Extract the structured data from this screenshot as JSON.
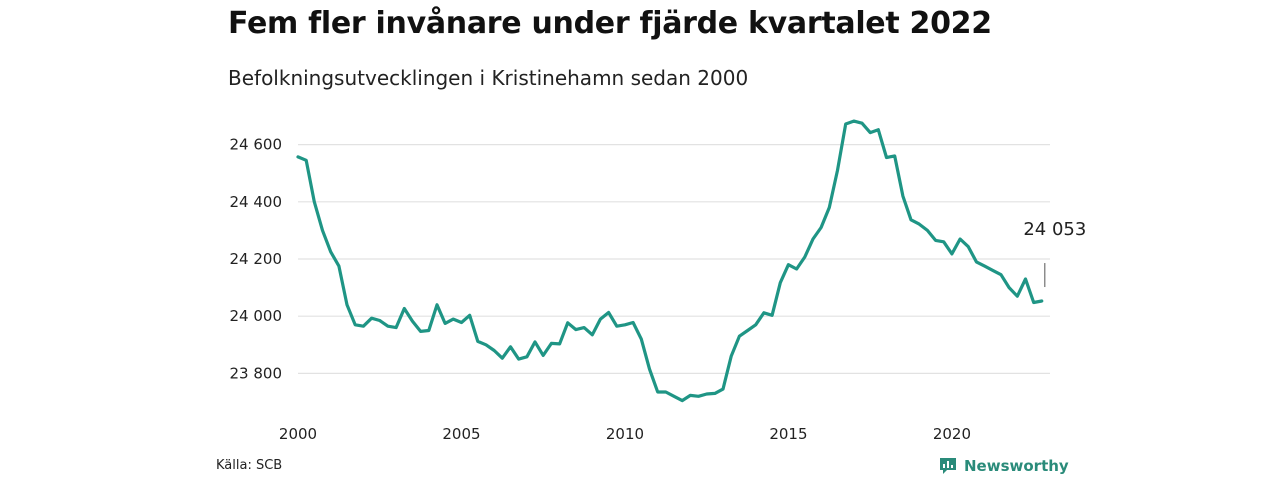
{
  "chart_data": {
    "type": "line",
    "title": "Fem fler invånare under fjärde kvartalet 2022",
    "subtitle": "Befolkningsutvecklingen i Kristinehamn sedan 2000",
    "xlabel": "",
    "ylabel": "",
    "xlim": [
      2000,
      2023
    ],
    "ylim": [
      23700,
      24700
    ],
    "yticks": [
      23800,
      24000,
      24200,
      24400,
      24600
    ],
    "ytick_labels": [
      "23 800",
      "24 000",
      "24 200",
      "24 400",
      "24 600"
    ],
    "xticks": [
      2000,
      2005,
      2010,
      2015,
      2020
    ],
    "xtick_labels": [
      "2000",
      "2005",
      "2010",
      "2015",
      "2020"
    ],
    "grid": true,
    "series": [
      {
        "color": "#1f9585",
        "x": [
          2000.0,
          2000.25,
          2000.5,
          2000.75,
          2001.0,
          2001.25,
          2001.5,
          2001.75,
          2002.0,
          2002.25,
          2002.5,
          2002.75,
          2003.0,
          2003.25,
          2003.5,
          2003.75,
          2004.0,
          2004.25,
          2004.5,
          2004.75,
          2005.0,
          2005.25,
          2005.5,
          2005.75,
          2006.0,
          2006.25,
          2006.5,
          2006.75,
          2007.0,
          2007.25,
          2007.5,
          2007.75,
          2008.0,
          2008.25,
          2008.5,
          2008.75,
          2009.0,
          2009.25,
          2009.5,
          2009.75,
          2010.0,
          2010.25,
          2010.5,
          2010.75,
          2011.0,
          2011.25,
          2011.5,
          2011.75,
          2012.0,
          2012.25,
          2012.5,
          2012.75,
          2013.0,
          2013.25,
          2013.5,
          2013.75,
          2014.0,
          2014.25,
          2014.5,
          2014.75,
          2015.0,
          2015.25,
          2015.5,
          2015.75,
          2016.0,
          2016.25,
          2016.5,
          2016.75,
          2017.0,
          2017.25,
          2017.5,
          2017.75,
          2018.0,
          2018.25,
          2018.5,
          2018.75,
          2019.0,
          2019.25,
          2019.5,
          2019.75,
          2020.0,
          2020.25,
          2020.5,
          2020.75,
          2021.0,
          2021.25,
          2021.5,
          2021.75,
          2022.0,
          2022.25,
          2022.5,
          2022.75
        ],
        "y": [
          24557,
          24545,
          24400,
          24300,
          24225,
          24175,
          24040,
          23970,
          23965,
          23993,
          23985,
          23965,
          23960,
          24027,
          23983,
          23947,
          23950,
          24040,
          23975,
          23990,
          23978,
          24003,
          23912,
          23900,
          23880,
          23853,
          23893,
          23850,
          23858,
          23910,
          23863,
          23905,
          23903,
          23977,
          23953,
          23960,
          23935,
          23990,
          24013,
          23965,
          23970,
          23978,
          23920,
          23815,
          23735,
          23735,
          23720,
          23705,
          23723,
          23720,
          23728,
          23730,
          23745,
          23860,
          23930,
          23950,
          23970,
          24012,
          24003,
          24117,
          24180,
          24165,
          24207,
          24270,
          24310,
          24380,
          24510,
          24672,
          24682,
          24675,
          24642,
          24652,
          24555,
          24560,
          24420,
          24337,
          24322,
          24300,
          24265,
          24260,
          24218,
          24270,
          24243,
          24190,
          24175,
          24160,
          24145,
          24100,
          24070,
          24130,
          24048,
          24053
        ]
      }
    ],
    "annotations": [
      {
        "x": 2022.75,
        "y": 24053,
        "text": "24 053"
      }
    ],
    "source": "Källa: SCB"
  },
  "brand": {
    "name": "Newsworthy",
    "icon": "chart-icon"
  }
}
